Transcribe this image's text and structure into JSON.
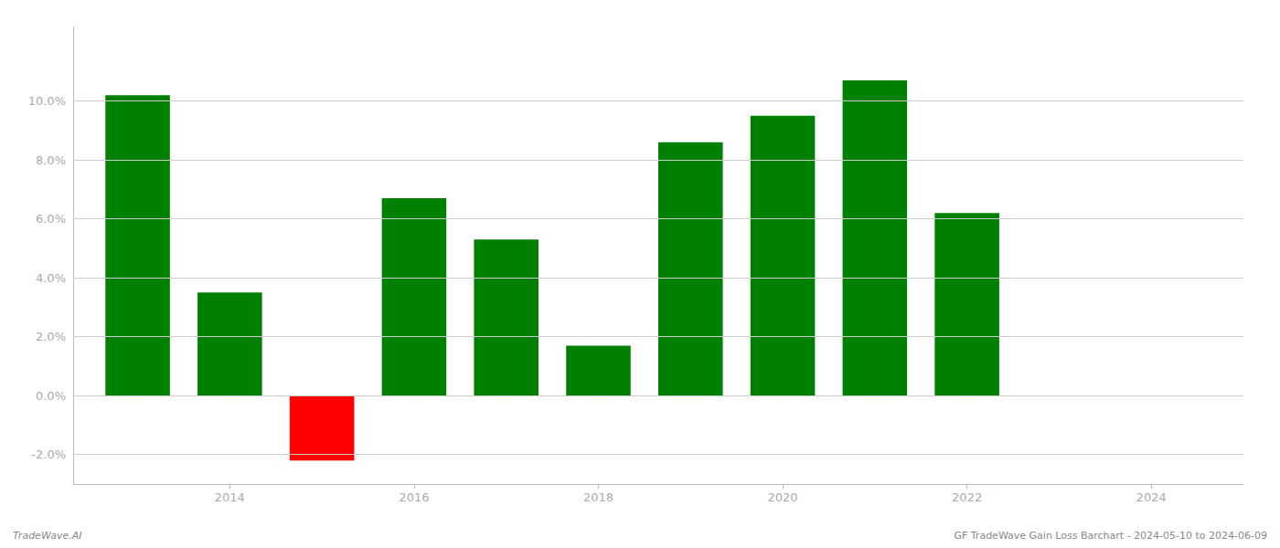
{
  "chart_data": {
    "type": "bar",
    "x": [
      2013,
      2014,
      2015,
      2016,
      2017,
      2018,
      2019,
      2020,
      2021,
      2022
    ],
    "values": [
      0.102,
      0.035,
      -0.022,
      0.067,
      0.053,
      0.017,
      0.086,
      0.095,
      0.107,
      0.062
    ],
    "colors": [
      "#008000",
      "#008000",
      "#ff0000",
      "#008000",
      "#008000",
      "#008000",
      "#008000",
      "#008000",
      "#008000",
      "#008000"
    ],
    "xlim": [
      2012.3,
      2025.0
    ],
    "xticks": [
      2014,
      2016,
      2018,
      2020,
      2022,
      2024
    ],
    "ylim": [
      -0.03,
      0.125
    ],
    "yticks": [
      {
        "value": -0.02,
        "label": "-2.0%"
      },
      {
        "value": 0.0,
        "label": "0.0%"
      },
      {
        "value": 0.02,
        "label": "2.0%"
      },
      {
        "value": 0.04,
        "label": "4.0%"
      },
      {
        "value": 0.06,
        "label": "6.0%"
      },
      {
        "value": 0.08,
        "label": "8.0%"
      },
      {
        "value": 0.1,
        "label": "10.0%"
      }
    ],
    "grid": true,
    "footer_left": "TradeWave.AI",
    "footer_right": "GF TradeWave Gain Loss Barchart - 2024-05-10 to 2024-06-09"
  }
}
